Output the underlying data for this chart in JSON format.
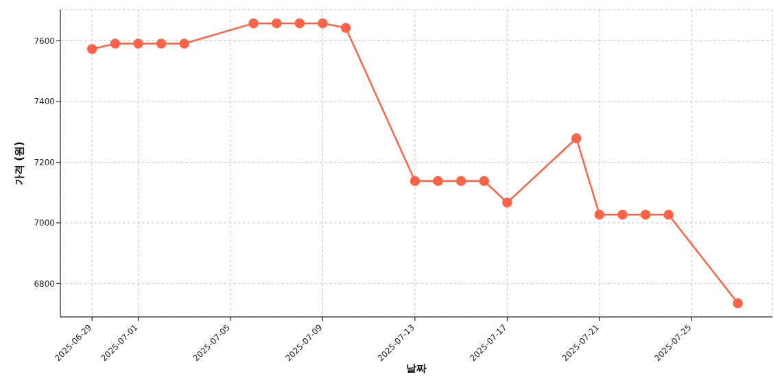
{
  "chart_data": {
    "type": "line",
    "xlabel": "날짜",
    "ylabel": "가격 (원)",
    "x": [
      "2025-06-29",
      "2025-06-30",
      "2025-07-01",
      "2025-07-02",
      "2025-07-03",
      "2025-07-06",
      "2025-07-07",
      "2025-07-08",
      "2025-07-09",
      "2025-07-10",
      "2025-07-13",
      "2025-07-14",
      "2025-07-15",
      "2025-07-16",
      "2025-07-17",
      "2025-07-20",
      "2025-07-21",
      "2025-07-22",
      "2025-07-23",
      "2025-07-24",
      "2025-07-27"
    ],
    "series": [
      {
        "color": "#ff6347",
        "values": [
          7573,
          7591,
          7591,
          7591,
          7591,
          7658,
          7658,
          7658,
          7658,
          7643,
          7138,
          7138,
          7138,
          7138,
          7067,
          7279,
          7027,
          7027,
          7027,
          7027,
          6735
        ]
      }
    ],
    "xlim": [
      "2025-06-27T15:00",
      "2025-07-28T12:00"
    ],
    "xticks": [
      "2025-06-29",
      "2025-07-01",
      "2025-07-05",
      "2025-07-09",
      "2025-07-13",
      "2025-07-17",
      "2025-07-21",
      "2025-07-25"
    ],
    "ylim": [
      6690,
      7703
    ],
    "yticks": [
      6800,
      7000,
      7200,
      7400,
      7600
    ],
    "grid": true,
    "marker": "circle",
    "line_style": "solid",
    "legend": false
  }
}
